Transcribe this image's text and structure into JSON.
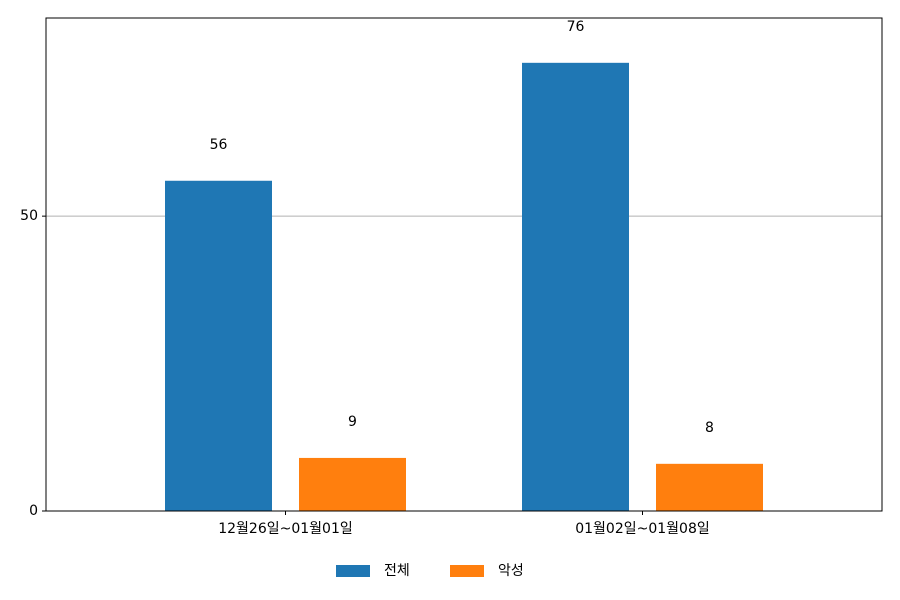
{
  "chart_data": {
    "type": "bar",
    "categories": [
      "12월26일~01월01일",
      "01월02일~01월08일"
    ],
    "series": [
      {
        "name": "전체",
        "color": "#1f77b4",
        "values": [
          56,
          76
        ]
      },
      {
        "name": "악성",
        "color": "#ff7f0e",
        "values": [
          9,
          8
        ]
      }
    ],
    "ylim": [
      0,
      83.6
    ],
    "yticks": [
      0,
      50
    ],
    "grid": true,
    "legend": "bottom"
  }
}
